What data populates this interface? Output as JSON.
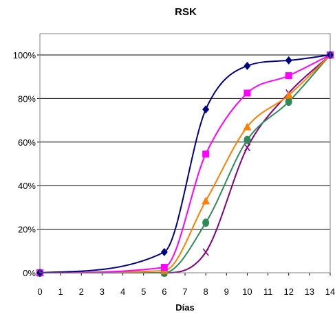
{
  "chart_data": {
    "type": "line",
    "title": "RSK",
    "xlabel": "Días",
    "ylabel": "",
    "xlim": [
      0,
      14
    ],
    "ylim": [
      0,
      100
    ],
    "x_ticks": [
      0,
      1,
      2,
      3,
      4,
      5,
      6,
      7,
      8,
      9,
      10,
      11,
      12,
      13,
      14
    ],
    "y_ticks": [
      "0%",
      "20%",
      "40%",
      "60%",
      "80%",
      "100%"
    ],
    "grid": "horizontal",
    "legend": "none",
    "x": [
      0,
      6,
      8,
      10,
      12,
      14
    ],
    "series": [
      {
        "color": "#000080",
        "marker": "diamond",
        "values": [
          0,
          9.5,
          75,
          95,
          97.5,
          100
        ]
      },
      {
        "color": "#ff00ff",
        "marker": "square",
        "values": [
          0,
          2.5,
          54.5,
          82.5,
          90.5,
          100
        ]
      },
      {
        "color": "#ff7f00",
        "marker": "triangle",
        "values": [
          0,
          1,
          33,
          67,
          81.5,
          100
        ]
      },
      {
        "color": "#2e8b57",
        "marker": "circle",
        "values": [
          0,
          0,
          23,
          61,
          78.5,
          100
        ]
      },
      {
        "color": "#800080",
        "marker": "x",
        "values": [
          0,
          0,
          9.5,
          57.5,
          82.5,
          100
        ]
      }
    ]
  }
}
